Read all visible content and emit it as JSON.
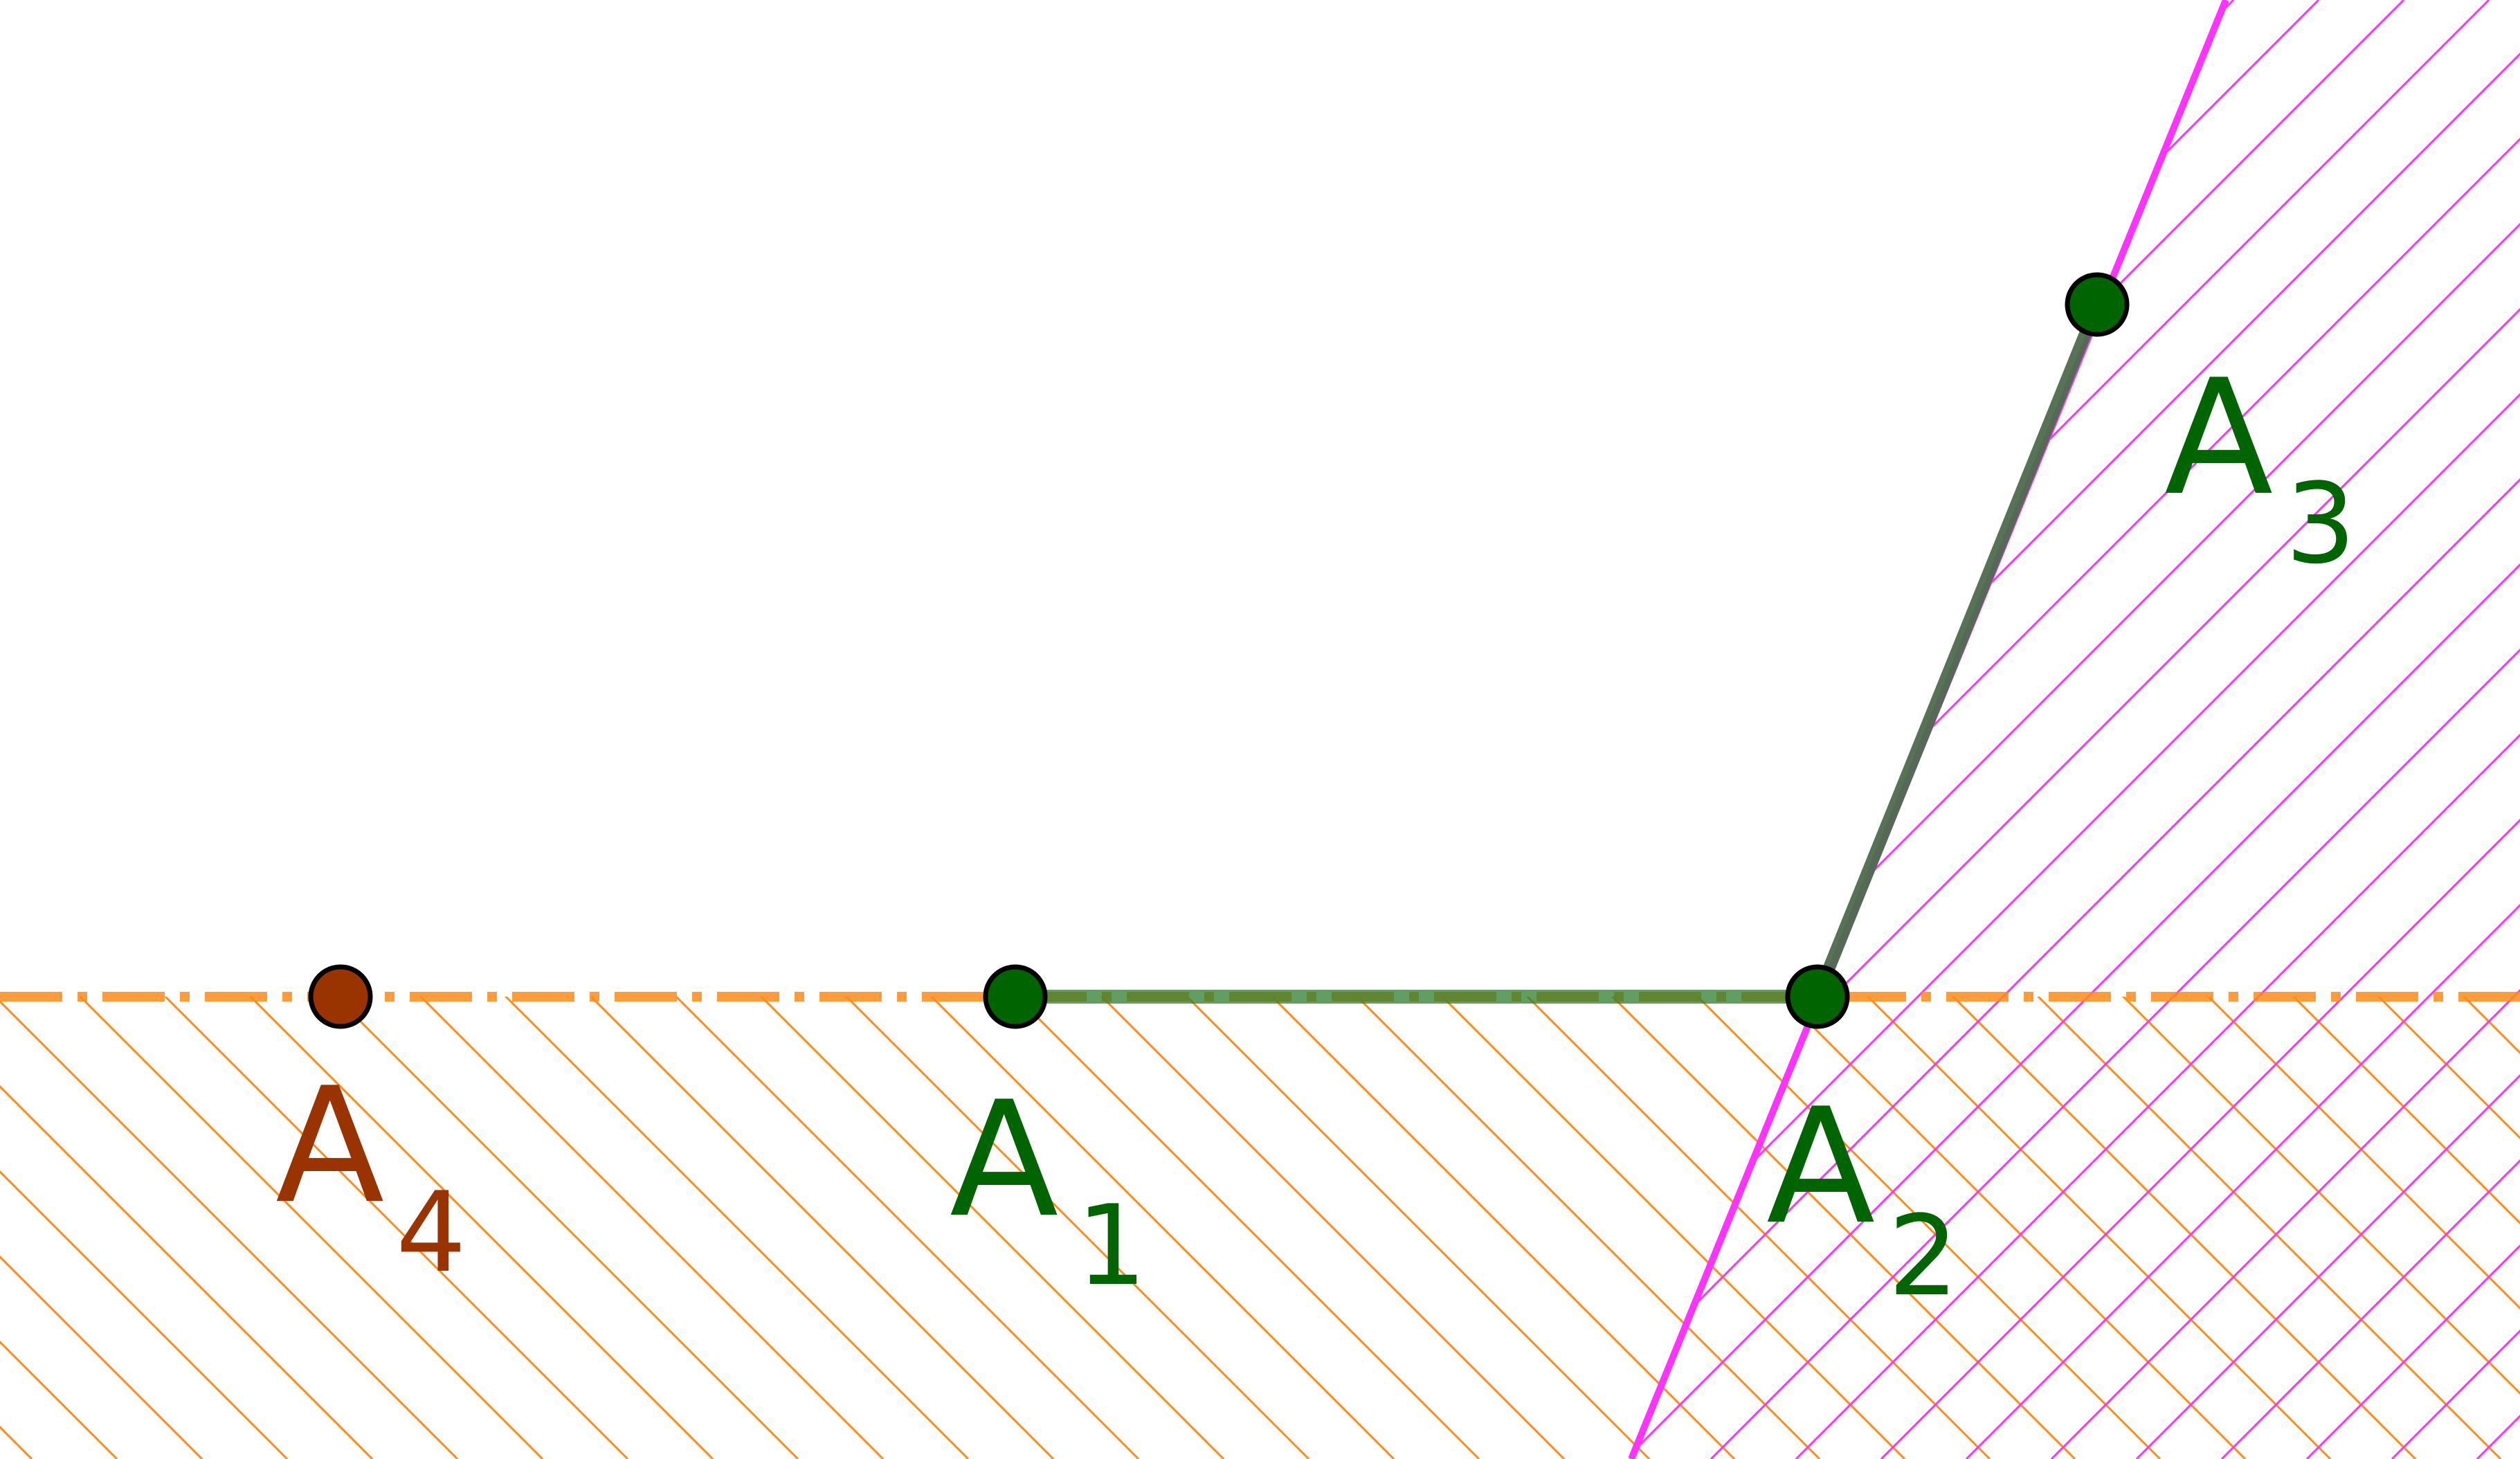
{
  "colors": {
    "green_point": "#006400",
    "brown_point": "#993300",
    "segment": "#4d6b4d",
    "orange": "#ff8c1a",
    "magenta": "#ff33ff",
    "point_outline": "#000000"
  },
  "points": [
    {
      "id": "A1",
      "main": "A",
      "sub": "1"
    },
    {
      "id": "A2",
      "main": "A",
      "sub": "2"
    },
    {
      "id": "A3",
      "main": "A",
      "sub": "3"
    },
    {
      "id": "A4",
      "main": "A",
      "sub": "4"
    }
  ]
}
